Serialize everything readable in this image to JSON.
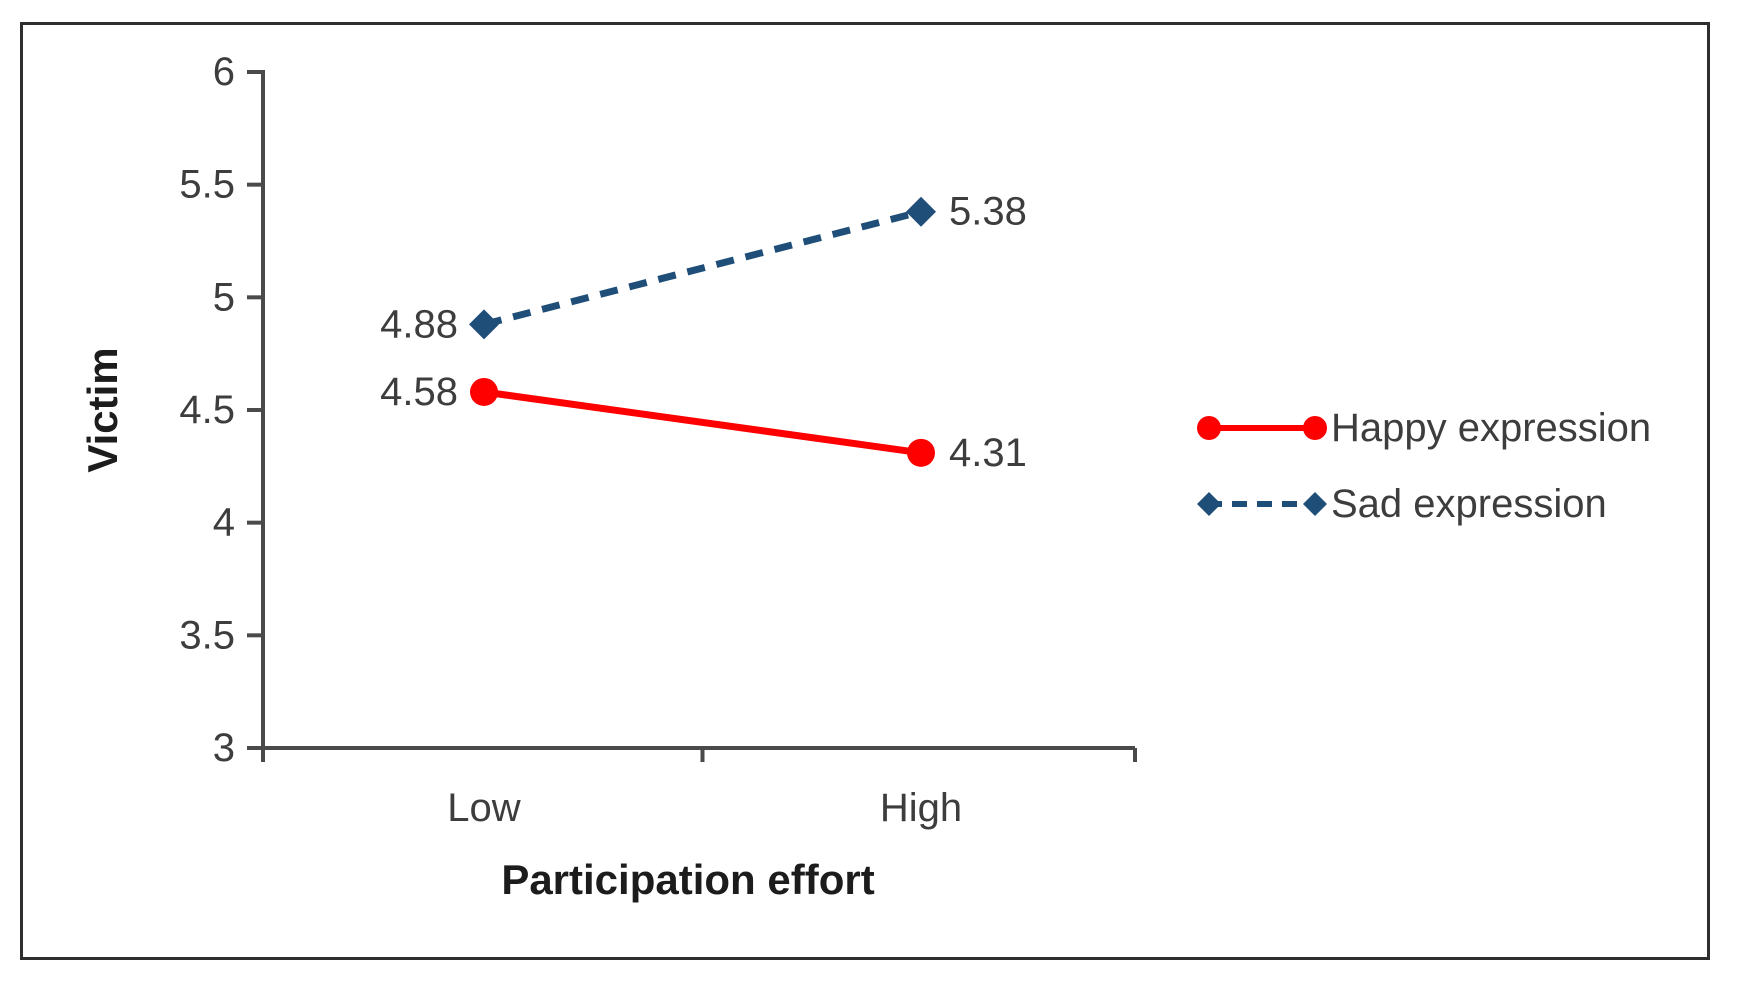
{
  "figure": {
    "type": "framed-chart-image"
  },
  "chart_data": {
    "type": "line",
    "categories": [
      "Low",
      "High"
    ],
    "series": [
      {
        "name": "Happy expression",
        "values": [
          4.58,
          4.31
        ],
        "color": "#ff0000",
        "marker": "circle",
        "style": "solid",
        "label_side": [
          "left",
          "right"
        ]
      },
      {
        "name": "Sad expression",
        "values": [
          4.88,
          5.38
        ],
        "color": "#1f4e79",
        "marker": "diamond",
        "style": "dashed",
        "label_side": [
          "left",
          "right"
        ]
      }
    ],
    "data_labels": [
      "4.58",
      "4.31",
      "4.88",
      "5.38"
    ],
    "title": "",
    "ylabel": "Victim",
    "xlabel": "Participation effort",
    "ylim": [
      3,
      6
    ],
    "yticks": [
      6,
      5.5,
      5,
      4.5,
      4,
      3.5,
      3
    ],
    "ytick_labels": [
      "6",
      "5.5",
      "5",
      "4.5",
      "4",
      "3.5",
      "3"
    ],
    "grid": "off",
    "legend_position": "right-center",
    "colors": {
      "axis": "#4a4a4a",
      "text": "#3d3d3d",
      "frame": "#2e2e2e"
    }
  }
}
